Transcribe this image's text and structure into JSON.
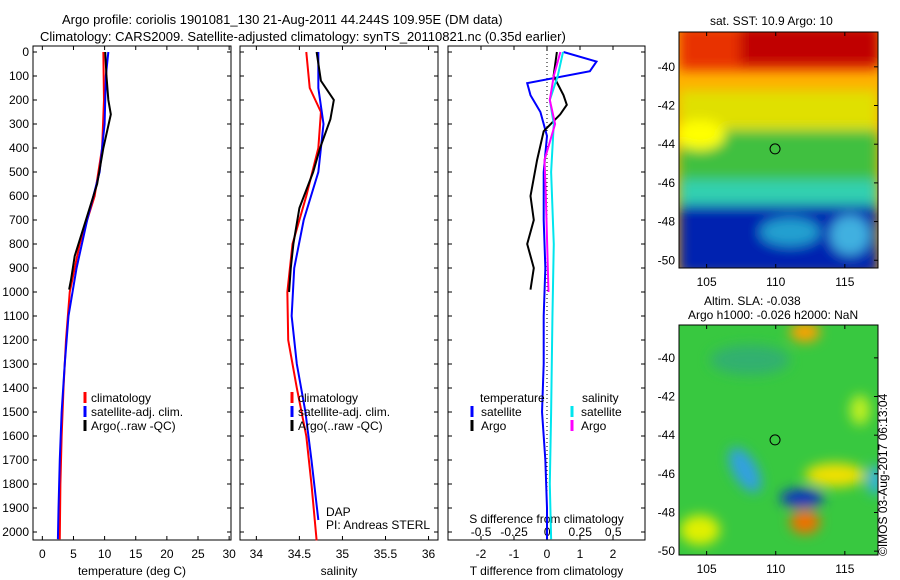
{
  "title_line1": "Argo profile: coriolis 1901081_130 21-Aug-2011 44.244S 109.95E (DM data)",
  "title_line2": "Climatology: CARS2009. Satellite-adjusted climatology: synTS_20110821.nc (0.35d earlier)",
  "colors": {
    "climatology": "#ff0000",
    "satellite": "#0000ff",
    "argo": "#000000",
    "sal_satellite": "#00e5ee",
    "sal_argo": "#ff00ff"
  },
  "chart_data": [
    {
      "type": "line",
      "name": "temperature",
      "xlabel": "temperature (deg C)",
      "ylabel": "depth",
      "xlim": [
        -1.5,
        30.3
      ],
      "ylim": [
        2035,
        0
      ],
      "xticks": [
        0,
        5,
        10,
        15,
        20,
        25,
        30
      ],
      "yticks": [
        0,
        100,
        200,
        300,
        400,
        500,
        600,
        700,
        800,
        900,
        1000,
        1100,
        1200,
        1300,
        1400,
        1500,
        1600,
        1700,
        1800,
        1900,
        2000
      ],
      "legend": [
        "climatology",
        "satellite-adj. clim.",
        "Argo(..raw -QC)"
      ],
      "series": [
        {
          "name": "climatology",
          "color": "#ff0000",
          "depth": [
            0,
            200,
            400,
            600,
            800,
            1000,
            1200,
            1400,
            1600,
            1800,
            2030
          ],
          "values": [
            9.8,
            9.9,
            9.6,
            8.4,
            6,
            4.4,
            3.8,
            3.4,
            3.1,
            2.9,
            2.8
          ]
        },
        {
          "name": "satellite-adj. clim.",
          "color": "#0000ff",
          "depth": [
            0,
            100,
            300,
            500,
            700,
            900,
            1100,
            1300,
            1500,
            1700,
            1900,
            2030
          ],
          "values": [
            10.6,
            10.2,
            10,
            9.2,
            7.2,
            5.5,
            4.2,
            3.6,
            3.1,
            2.8,
            2.6,
            2.5
          ]
        },
        {
          "name": "Argo(..raw -QC)",
          "color": "#000000",
          "depth": [
            0,
            100,
            200,
            260,
            400,
            550,
            700,
            850,
            950,
            990
          ],
          "values": [
            10.1,
            10.3,
            10.6,
            11,
            9.8,
            8.8,
            7,
            5.2,
            4.6,
            4.3
          ]
        }
      ]
    },
    {
      "type": "line",
      "name": "salinity",
      "xlabel": "salinity",
      "ylabel": "depth",
      "xlim": [
        33.81,
        36.11
      ],
      "ylim": [
        2035,
        0
      ],
      "xticks": [
        34,
        34.5,
        35,
        35.5,
        36
      ],
      "legend": [
        "climatology",
        "satellite-adj. clim.",
        "Argo(..raw -QC)"
      ],
      "annotations": [
        "DAP",
        "PI: Andreas STERL"
      ],
      "series": [
        {
          "name": "climatology",
          "color": "#ff0000",
          "depth": [
            0,
            150,
            250,
            400,
            600,
            800,
            1000,
            1200,
            1400,
            1600,
            1800,
            2035
          ],
          "values": [
            34.58,
            34.62,
            34.75,
            34.72,
            34.58,
            34.42,
            34.36,
            34.37,
            34.47,
            34.58,
            34.64,
            34.7
          ]
        },
        {
          "name": "satellite-adj. clim.",
          "color": "#0000ff",
          "depth": [
            0,
            150,
            300,
            500,
            700,
            900,
            1100,
            1300,
            1500,
            1700,
            1950
          ],
          "values": [
            34.72,
            34.72,
            34.78,
            34.72,
            34.55,
            34.44,
            34.41,
            34.47,
            34.57,
            34.64,
            34.72
          ]
        },
        {
          "name": "Argo(..raw -QC)",
          "color": "#000000",
          "depth": [
            0,
            120,
            200,
            280,
            400,
            500,
            650,
            800,
            900,
            1000
          ],
          "values": [
            34.7,
            34.75,
            34.9,
            34.86,
            34.74,
            34.66,
            34.5,
            34.43,
            34.4,
            34.38
          ]
        }
      ]
    },
    {
      "type": "line",
      "name": "difference",
      "xlabel": "T difference from climatology",
      "x2label": "S difference from climatology",
      "xlim": [
        -3,
        2.97
      ],
      "x2lim": [
        -0.75,
        0.74
      ],
      "xticks": [
        -2,
        -1,
        0,
        1,
        2
      ],
      "x2ticks": [
        -0.5,
        -0.25,
        0,
        0.25,
        0.5
      ],
      "legend_temperature_title": "temperature",
      "legend_salinity_title": "salinity",
      "legend": [
        "satellite",
        "Argo",
        "satellite",
        "Argo"
      ],
      "series": [
        {
          "name": "T satellite",
          "axis": "T",
          "color": "#0000ff",
          "depth": [
            0,
            40,
            80,
            130,
            180,
            250,
            350,
            500,
            700,
            900,
            1100,
            1300,
            1500,
            1700,
            1900,
            2030
          ],
          "values": [
            0.5,
            1.5,
            1.3,
            -0.6,
            -0.5,
            -0.2,
            0,
            -0.1,
            -0.1,
            -0.05,
            -0.1,
            -0.1,
            -0.15,
            -0.05,
            0,
            0
          ]
        },
        {
          "name": "T Argo",
          "axis": "T",
          "color": "#000000",
          "depth": [
            0,
            100,
            180,
            220,
            260,
            330,
            450,
            600,
            700,
            800,
            900,
            990
          ],
          "values": [
            0.3,
            0.2,
            0.5,
            0.6,
            0.4,
            -0.1,
            -0.3,
            -0.5,
            -0.4,
            -0.6,
            -0.4,
            -0.5
          ]
        },
        {
          "name": "S satellite",
          "axis": "S",
          "color": "#00e5ee",
          "depth": [
            0,
            100,
            200,
            300,
            500,
            800,
            1100,
            1500,
            1800,
            2030
          ],
          "values": [
            0.12,
            0.08,
            0.02,
            0.05,
            0.03,
            0.05,
            0.04,
            0.03,
            0.02,
            0.03
          ]
        },
        {
          "name": "S Argo",
          "axis": "S",
          "color": "#ff00ff",
          "depth": [
            0,
            100,
            200,
            300,
            450,
            600,
            800,
            1000
          ],
          "values": [
            0.1,
            0.05,
            0.02,
            0.06,
            -0.02,
            -0.01,
            0.0,
            0.01
          ]
        }
      ]
    },
    {
      "type": "heatmap",
      "name": "sst-map",
      "title": "sat. SST: 10.9 Argo: 10",
      "xlim": [
        103,
        117.4
      ],
      "ylim": [
        -50.4,
        -38.2
      ],
      "xticks": [
        105,
        110,
        115
      ],
      "yticks": [
        -40,
        -42,
        -44,
        -46,
        -48,
        -50
      ],
      "marker": [
        109.95,
        -44.244
      ]
    },
    {
      "type": "heatmap",
      "name": "sla-map",
      "title_line1": "Altim. SLA: -0.038",
      "title_line2": "Argo h1000: -0.026 h2000: NaN",
      "xlim": [
        103,
        117.4
      ],
      "ylim": [
        -50.2,
        -38.3
      ],
      "xticks": [
        105,
        110,
        115
      ],
      "yticks": [
        -40,
        -42,
        -44,
        -46,
        -48,
        -50
      ],
      "marker": [
        109.95,
        -44.244
      ]
    }
  ],
  "credit": "©IMOS 03-Aug-2017 06:13:04"
}
